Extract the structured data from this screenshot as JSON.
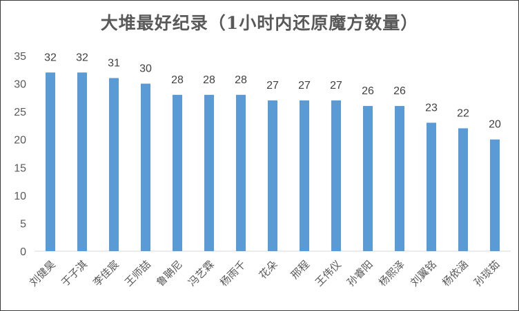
{
  "chart_data": {
    "type": "bar",
    "title": "大堆最好纪录（1小时内还原魔方数量）",
    "xlabel": "",
    "ylabel": "",
    "categories": [
      "刘健昊",
      "于子淇",
      "李佳宸",
      "王师喆",
      "鲁聃尼",
      "冯艺霖",
      "杨雨千",
      "花朵",
      "邢程",
      "王伟仪",
      "孙睿阳",
      "杨熙泽",
      "刘翼铭",
      "杨依涵",
      "孙琰茹"
    ],
    "values": [
      32,
      32,
      31,
      30,
      28,
      28,
      28,
      27,
      27,
      27,
      26,
      26,
      23,
      22,
      20
    ],
    "ylim": [
      0,
      35
    ],
    "yticks": [
      "0",
      "5",
      "10",
      "15",
      "20",
      "25",
      "30",
      "35"
    ],
    "grid": false,
    "legend": "none",
    "bar_color": "#5B9BD5",
    "data_labels": true
  }
}
